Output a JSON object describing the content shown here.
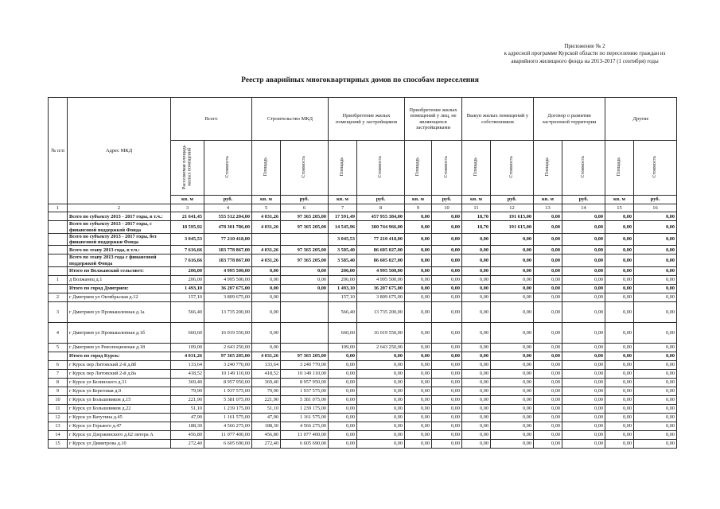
{
  "doc": {
    "corner_note": [
      "Приложение № 2",
      "к адресной программе Курской области по переселению граждан из",
      "аварийного жилищного фонда на 2013-2017 (1 сентября) годы"
    ],
    "title": "Реестр аварийных многоквартирных домов по способам переселения"
  },
  "table": {
    "header": {
      "num": "№ п/п",
      "address": "Адрес МКД",
      "groups": [
        {
          "label": "Всего",
          "sub": [
            "Расселяемая площадь жилых помещений",
            "Стоимость"
          ]
        },
        {
          "label": "Строительство МКД",
          "sub": [
            "Площадь",
            "Стоимость"
          ]
        },
        {
          "label": "Приобретение жилых помещений у застройщиков",
          "sub": [
            "Площадь",
            "Стоимость"
          ]
        },
        {
          "label": "Приобретение жилых помещений у лиц, не являющихся застройщиками",
          "sub": [
            "Площадь",
            "Стоимость"
          ]
        },
        {
          "label": "Выкуп жилых помещений у собственников",
          "sub": [
            "Площадь",
            "Стоимость"
          ]
        },
        {
          "label": "Договор о развитии застроенной территории",
          "sub": [
            "Площадь",
            "Стоимость"
          ]
        },
        {
          "label": "Другие",
          "sub": [
            "Площадь",
            "Стоимость"
          ]
        }
      ],
      "units": {
        "area": "кв. м",
        "cost": "руб."
      },
      "col_numbers": [
        "1",
        "2",
        "3",
        "4",
        "5",
        "6",
        "7",
        "8",
        "9",
        "10",
        "11",
        "12",
        "13",
        "14",
        "15",
        "16"
      ]
    },
    "rows": [
      {
        "n": "",
        "a": "Всего по субъекту 2013 - 2017 годы, в т.ч.:",
        "b": true,
        "v": [
          "21 641,45",
          "555 512 204,00",
          "4 031,26",
          "97 365 205,00",
          "17 591,49",
          "457 955 384,00",
          "0,00",
          "0,00",
          "18,70",
          "191 615,00",
          "0,00",
          "0,00",
          "0,00",
          "0,00"
        ]
      },
      {
        "n": "",
        "a": "Всего по субъекту 2013 - 2017 годы, с финансовой поддержкой Фонда",
        "b": true,
        "v": [
          "18 595,92",
          "478 301 786,00",
          "4 031,26",
          "97 365 205,00",
          "14 545,96",
          "380 744 966,00",
          "0,00",
          "0,00",
          "18,70",
          "191 615,00",
          "0,00",
          "0,00",
          "0,00",
          "0,00"
        ]
      },
      {
        "n": "",
        "a": "Всего по субъекту 2013 - 2017 годы, без финансовой поддержки Фонда",
        "b": true,
        "v": [
          "3 045,53",
          "77 210 418,00",
          "",
          "",
          "3 045,53",
          "77 210 418,00",
          "0,00",
          "0,00",
          "0,00",
          "0,00",
          "0,00",
          "0,00",
          "0,00",
          "0,00"
        ]
      },
      {
        "n": "",
        "a": "Всего по этапу 2013 года, в т.ч.:",
        "b": true,
        "v": [
          "7 616,66",
          "183 778 867,00",
          "4 031,26",
          "97 365 205,00",
          "3 585,40",
          "86 605 027,00",
          "0,00",
          "0,00",
          "0,00",
          "0,00",
          "0,00",
          "0,00",
          "0,00",
          "0,00"
        ]
      },
      {
        "n": "",
        "a": "Всего по этапу 2013 года с финансовой поддержкой Фонда",
        "b": true,
        "v": [
          "7 616,66",
          "183 778 867,00",
          "4 031,26",
          "97 365 205,00",
          "3 585,40",
          "86 605 027,00",
          "0,00",
          "0,00",
          "0,00",
          "0,00",
          "0,00",
          "0,00",
          "0,00",
          "0,00"
        ]
      },
      {
        "n": "",
        "a": "Итого по Волжанский сельсовет:",
        "b": true,
        "v": [
          "206,00",
          "4 995 500,00",
          "0,00",
          "0,00",
          "206,00",
          "4 995 500,00",
          "0,00",
          "0,00",
          "0,00",
          "0,00",
          "0,00",
          "0,00",
          "0,00",
          "0,00"
        ]
      },
      {
        "n": "1",
        "a": "д Волжанец д.1",
        "v": [
          "206,00",
          "4 995 500,00",
          "0,00",
          "0,00",
          "206,00",
          "4 995 500,00",
          "0,00",
          "0,00",
          "0,00",
          "0,00",
          "0,00",
          "0,00",
          "0,00",
          "0,00"
        ]
      },
      {
        "n": "",
        "a": "Итого по город Дмитриев:",
        "b": true,
        "v": [
          "1 493,10",
          "36 207 675,00",
          "0,00",
          "0,00",
          "1 493,10",
          "36 207 675,00",
          "0,00",
          "0,00",
          "0,00",
          "0,00",
          "0,00",
          "0,00",
          "0,00",
          "0,00"
        ]
      },
      {
        "n": "2",
        "a": "г Дмитриев ул Октябрьская д.12",
        "v": [
          "157,10",
          "3 809 675,00",
          "0,00",
          "",
          "157,10",
          "3 809 675,00",
          "0,00",
          "0,00",
          "0,00",
          "0,00",
          "0,00",
          "0,00",
          "0,00",
          "0,00"
        ]
      },
      {
        "n": "3",
        "a": "г Дмитриев ул Промышленная д.1а",
        "h": 26,
        "v": [
          "566,40",
          "13 735 200,00",
          "0,00",
          "",
          "566,40",
          "13 735 200,00",
          "0,00",
          "0,00",
          "0,00",
          "0,00",
          "0,00",
          "0,00",
          "0,00",
          "0,00"
        ]
      },
      {
        "n": "4",
        "a": "г Дмитриев ул Промышленная д.1б",
        "h": 26,
        "v": [
          "660,60",
          "16 019 550,00",
          "0,00",
          "",
          "660,60",
          "16 019 550,00",
          "0,00",
          "0,00",
          "0,00",
          "0,00",
          "0,00",
          "0,00",
          "0,00",
          "0,00"
        ]
      },
      {
        "n": "5",
        "a": "г Дмитриев ул Революционная д.18",
        "v": [
          "109,00",
          "2 643 250,00",
          "0,00",
          "",
          "109,00",
          "2 643 250,00",
          "0,00",
          "0,00",
          "0,00",
          "0,00",
          "0,00",
          "0,00",
          "0,00",
          "0,00"
        ]
      },
      {
        "n": "",
        "a": "Итого по город Курск:",
        "b": true,
        "v": [
          "4 031,26",
          "97 365 205,00",
          "4 031,26",
          "97 365 205,00",
          "0,00",
          "0,00",
          "0,00",
          "0,00",
          "0,00",
          "0,00",
          "0,00",
          "0,00",
          "0,00",
          "0,00"
        ]
      },
      {
        "n": "6",
        "a": "г Курск пер Литовский 2-й д.8б",
        "v": [
          "133,64",
          "3 240 770,00",
          "133,64",
          "3 240 770,00",
          "0,00",
          "0,00",
          "0,00",
          "0,00",
          "0,00",
          "0,00",
          "0,00",
          "0,00",
          "0,00",
          "0,00"
        ]
      },
      {
        "n": "7",
        "a": "г Курск пер Литовский 2-й д.8а",
        "v": [
          "418,52",
          "10 149 110,00",
          "418,52",
          "10 149 110,00",
          "0,00",
          "0,00",
          "0,00",
          "0,00",
          "0,00",
          "0,00",
          "0,00",
          "0,00",
          "0,00",
          "0,00"
        ]
      },
      {
        "n": "8",
        "a": "г Курск ул Белинского д.31",
        "v": [
          "369,40",
          "8 957 950,00",
          "369,40",
          "8 957 950,00",
          "0,00",
          "0,00",
          "0,00",
          "0,00",
          "0,00",
          "0,00",
          "0,00",
          "0,00",
          "0,00",
          "0,00"
        ]
      },
      {
        "n": "9",
        "a": "г Курск ул Береговая д.9",
        "v": [
          "79,90",
          "1 937 575,00",
          "79,90",
          "1 937 575,00",
          "0,00",
          "0,00",
          "0,00",
          "0,00",
          "0,00",
          "0,00",
          "0,00",
          "0,00",
          "0,00",
          "0,00"
        ]
      },
      {
        "n": "10",
        "a": "г Курск ул Большевиков д.15",
        "v": [
          "221,90",
          "5 381 075,00",
          "221,90",
          "5 381 075,00",
          "0,00",
          "0,00",
          "0,00",
          "0,00",
          "0,00",
          "0,00",
          "0,00",
          "0,00",
          "0,00",
          "0,00"
        ]
      },
      {
        "n": "11",
        "a": "г Курск ул Большевиков д.22",
        "v": [
          "51,10",
          "1 239 175,00",
          "51,10",
          "1 239 175,00",
          "0,00",
          "0,00",
          "0,00",
          "0,00",
          "0,00",
          "0,00",
          "0,00",
          "0,00",
          "0,00",
          "0,00"
        ]
      },
      {
        "n": "12",
        "a": "г Курск ул Ватутина д.45",
        "v": [
          "47,90",
          "1 161 575,00",
          "47,90",
          "1 161 575,00",
          "0,00",
          "0,00",
          "0,00",
          "0,00",
          "0,00",
          "0,00",
          "0,00",
          "0,00",
          "0,00",
          "0,00"
        ]
      },
      {
        "n": "13",
        "a": "г Курск ул Горького д.47",
        "v": [
          "188,30",
          "4 566 275,00",
          "188,30",
          "4 566 275,00",
          "0,00",
          "0,00",
          "0,00",
          "0,00",
          "0,00",
          "0,00",
          "0,00",
          "0,00",
          "0,00",
          "0,00"
        ]
      },
      {
        "n": "14",
        "a": "г Курск ул Дзержинского д.62 литера А",
        "v": [
          "456,80",
          "11 077 400,00",
          "456,80",
          "11 077 400,00",
          "0,00",
          "0,00",
          "0,00",
          "0,00",
          "0,00",
          "0,00",
          "0,00",
          "0,00",
          "0,00",
          "0,00"
        ]
      },
      {
        "n": "15",
        "a": "г Курск ул Димитрова д.10",
        "v": [
          "272,40",
          "6 605 690,00",
          "272,40",
          "6 605 690,00",
          "0,00",
          "0,00",
          "0,00",
          "0,00",
          "0,00",
          "0,00",
          "0,00",
          "0,00",
          "0,00",
          "0,00"
        ]
      }
    ]
  }
}
